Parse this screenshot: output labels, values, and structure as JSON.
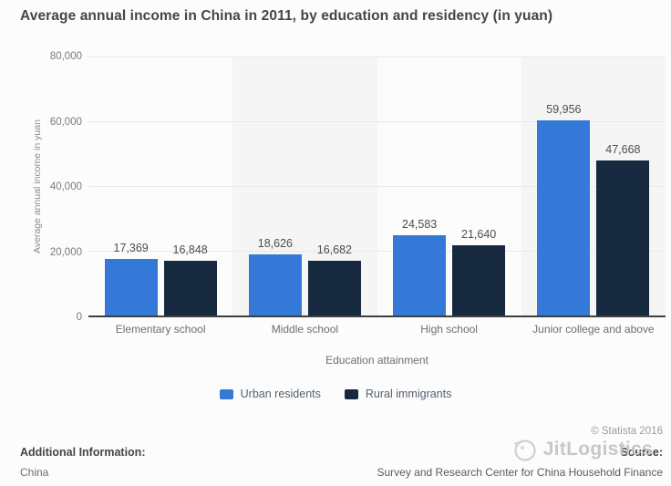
{
  "title": "Average annual income in China in 2011, by education and residency (in yuan)",
  "chart_data": {
    "type": "bar",
    "categories": [
      "Elementary school",
      "Middle school",
      "High school",
      "Junior college and above"
    ],
    "series": [
      {
        "name": "Urban residents",
        "color": "#3579d8",
        "values": [
          17369,
          18626,
          24583,
          59956
        ]
      },
      {
        "name": "Rural immigrants",
        "color": "#16293e",
        "values": [
          16848,
          16682,
          21640,
          47668
        ]
      }
    ],
    "xlabel": "Education attainment",
    "ylabel": "Average annual income in yuan",
    "ylim": [
      0,
      80000
    ],
    "yticks": [
      80000,
      60000,
      40000,
      20000,
      0
    ],
    "grid": true,
    "legend_position": "bottom",
    "bar_value_labels": true
  },
  "footer": {
    "copyright": "© Statista 2016",
    "source_label": "Source:",
    "source_text": "Survey and Research Center for China Household Finance",
    "additional_info_label": "Additional Information:",
    "additional_info_value": "China",
    "watermark_text": "JitLogistics"
  },
  "colors": {
    "urban": "#3579d8",
    "rural": "#16293e",
    "stripe": "#f5f5f5",
    "gridline": "#e9e9e9",
    "axis_line": "#3f3f3f",
    "watermark": "#c3c3c3"
  }
}
